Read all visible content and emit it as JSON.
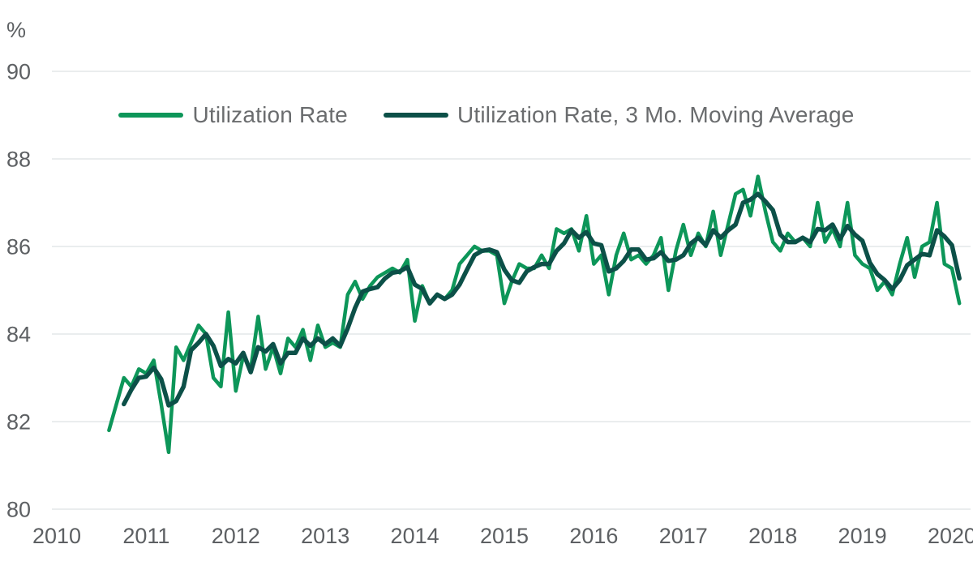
{
  "page": {
    "background_color": "#ffffff"
  },
  "colors": {
    "series_green": "#0d9659",
    "series_teal": "#0c5048",
    "grid_line": "#e4e7e9",
    "tick_text": "#5d6063",
    "legend_text": "#6a6c6e"
  },
  "chart_data": {
    "type": "line",
    "title": "",
    "grid": "horizontal",
    "legend_position": "top-center",
    "frequency": "monthly",
    "y_axis": {
      "unit_label": "%",
      "tick_values": [
        90,
        88,
        86,
        84,
        82,
        80
      ],
      "tick_labels": [
        "90",
        "88",
        "86",
        "84",
        "82",
        "80"
      ],
      "labeled_range": [
        80,
        90
      ]
    },
    "x_axis": {
      "start_year": 2010,
      "tick_labels": [
        "2010",
        "2011",
        "2012",
        "2013",
        "2014",
        "2015",
        "2016",
        "2017",
        "2018",
        "2019",
        "2020"
      ]
    },
    "series": [
      {
        "name": "Utilization Rate",
        "color": "#0d9659",
        "start": "2010-08",
        "months_after_jan_2010": 7,
        "values": [
          81.8,
          82.4,
          83.0,
          82.8,
          83.2,
          83.1,
          83.4,
          82.4,
          81.3,
          83.7,
          83.4,
          83.8,
          84.2,
          84.0,
          83.0,
          82.8,
          84.5,
          82.7,
          83.5,
          83.2,
          84.4,
          83.2,
          83.7,
          83.1,
          83.9,
          83.7,
          84.1,
          83.4,
          84.2,
          83.7,
          83.8,
          83.7,
          84.9,
          85.2,
          84.8,
          85.1,
          85.3,
          85.4,
          85.5,
          85.4,
          85.7,
          84.3,
          85.1,
          84.7,
          84.9,
          84.8,
          85.0,
          85.6,
          85.8,
          86.0,
          85.9,
          85.9,
          85.8,
          84.7,
          85.2,
          85.6,
          85.5,
          85.5,
          85.8,
          85.5,
          86.4,
          86.3,
          86.4,
          85.9,
          86.7,
          85.6,
          85.8,
          84.9,
          85.8,
          86.3,
          85.7,
          85.8,
          85.6,
          85.8,
          86.2,
          85.0,
          85.9,
          86.5,
          85.8,
          86.3,
          86.0,
          86.8,
          85.8,
          86.5,
          87.2,
          87.3,
          86.7,
          87.6,
          86.8,
          86.1,
          85.9,
          86.3,
          86.1,
          86.2,
          86.0,
          87.0,
          86.1,
          86.4,
          86.0,
          87.0,
          85.8,
          85.6,
          85.5,
          85.0,
          85.2,
          84.9,
          85.6,
          86.2,
          85.3,
          86.0,
          86.1,
          87.0,
          85.6,
          85.5,
          84.7
        ]
      },
      {
        "name": "Utilization Rate, 3 Mo. Moving Average",
        "color": "#0c5048",
        "start": "2010-10",
        "months_after_jan_2010": 9,
        "values": [
          82.4,
          82.73,
          83.0,
          83.03,
          83.23,
          82.97,
          82.37,
          82.47,
          82.8,
          83.63,
          83.8,
          84.0,
          83.73,
          83.27,
          83.43,
          83.33,
          83.57,
          83.13,
          83.7,
          83.6,
          83.77,
          83.33,
          83.57,
          83.57,
          83.9,
          83.73,
          83.9,
          83.77,
          83.9,
          83.73,
          84.13,
          84.6,
          84.97,
          85.03,
          85.07,
          85.27,
          85.4,
          85.43,
          85.53,
          85.13,
          85.03,
          84.7,
          84.9,
          84.8,
          84.9,
          85.13,
          85.47,
          85.8,
          85.9,
          85.93,
          85.87,
          85.47,
          85.23,
          85.17,
          85.43,
          85.53,
          85.6,
          85.6,
          85.9,
          86.07,
          86.37,
          86.2,
          86.33,
          86.07,
          86.03,
          85.43,
          85.5,
          85.67,
          85.93,
          85.93,
          85.7,
          85.73,
          85.87,
          85.67,
          85.7,
          85.8,
          86.07,
          86.2,
          86.03,
          86.37,
          86.2,
          86.37,
          86.5,
          87.0,
          87.07,
          87.2,
          87.03,
          86.83,
          86.27,
          86.1,
          86.1,
          86.2,
          86.1,
          86.4,
          86.37,
          86.5,
          86.17,
          86.47,
          86.27,
          86.13,
          85.63,
          85.37,
          85.23,
          85.03,
          85.23,
          85.57,
          85.7,
          85.83,
          85.8,
          86.37,
          86.23,
          86.03,
          85.27
        ]
      }
    ]
  }
}
